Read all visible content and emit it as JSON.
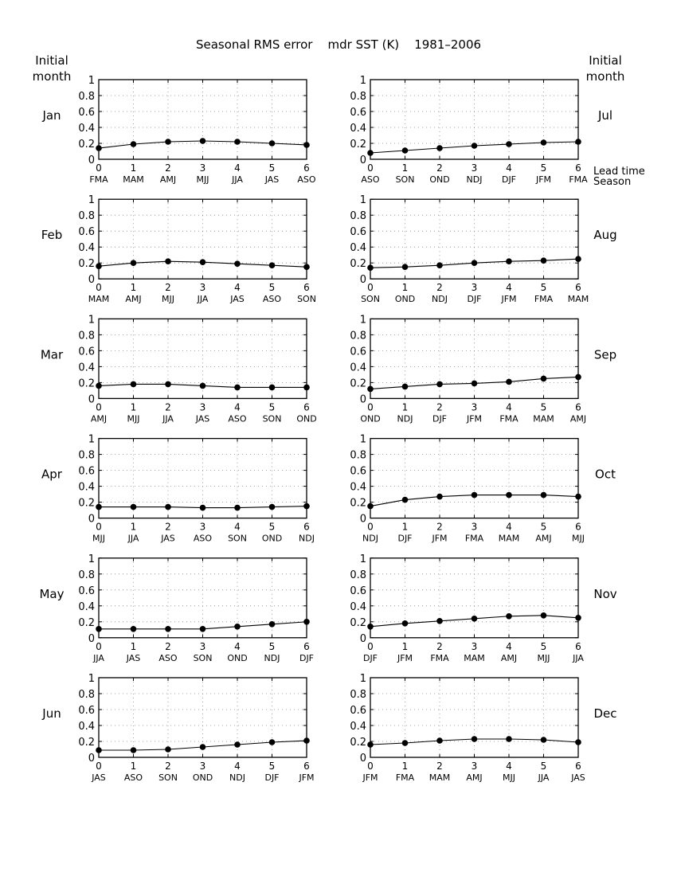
{
  "figure": {
    "title": "Seasonal RMS error    mdr SST (K)    1981–2006",
    "left_header": [
      "Initial",
      "month"
    ],
    "right_header": [
      "Initial",
      "month"
    ],
    "lead_time_label": "Lead time",
    "season_label": "Season"
  },
  "chart_data": {
    "type": "line",
    "grid": "dotted",
    "ylim": [
      0,
      1
    ],
    "yticks": [
      "0",
      "0.2",
      "0.4",
      "0.6",
      "0.8",
      "1"
    ],
    "x": [
      0,
      1,
      2,
      3,
      4,
      5,
      6
    ],
    "panels": [
      {
        "month": "Jan",
        "seasons": [
          "FMA",
          "MAM",
          "AMJ",
          "MJJ",
          "JJA",
          "JAS",
          "ASO"
        ],
        "values": [
          0.14,
          0.19,
          0.22,
          0.23,
          0.22,
          0.2,
          0.18
        ]
      },
      {
        "month": "Jul",
        "seasons": [
          "ASO",
          "SON",
          "OND",
          "NDJ",
          "DJF",
          "JFM",
          "FMA"
        ],
        "values": [
          0.08,
          0.11,
          0.14,
          0.17,
          0.19,
          0.21,
          0.22
        ]
      },
      {
        "month": "Feb",
        "seasons": [
          "MAM",
          "AMJ",
          "MJJ",
          "JJA",
          "JAS",
          "ASO",
          "SON"
        ],
        "values": [
          0.16,
          0.2,
          0.22,
          0.21,
          0.19,
          0.17,
          0.15
        ]
      },
      {
        "month": "Aug",
        "seasons": [
          "SON",
          "OND",
          "NDJ",
          "DJF",
          "JFM",
          "FMA",
          "MAM"
        ],
        "values": [
          0.14,
          0.15,
          0.17,
          0.2,
          0.22,
          0.23,
          0.25
        ]
      },
      {
        "month": "Mar",
        "seasons": [
          "AMJ",
          "MJJ",
          "JJA",
          "JAS",
          "ASO",
          "SON",
          "OND"
        ],
        "values": [
          0.16,
          0.18,
          0.18,
          0.16,
          0.14,
          0.14,
          0.14
        ]
      },
      {
        "month": "Sep",
        "seasons": [
          "OND",
          "NDJ",
          "DJF",
          "JFM",
          "FMA",
          "MAM",
          "AMJ"
        ],
        "values": [
          0.12,
          0.15,
          0.18,
          0.19,
          0.21,
          0.25,
          0.27
        ]
      },
      {
        "month": "Apr",
        "seasons": [
          "MJJ",
          "JJA",
          "JAS",
          "ASO",
          "SON",
          "OND",
          "NDJ"
        ],
        "values": [
          0.14,
          0.14,
          0.14,
          0.13,
          0.13,
          0.14,
          0.15
        ]
      },
      {
        "month": "Oct",
        "seasons": [
          "NDJ",
          "DJF",
          "JFM",
          "FMA",
          "MAM",
          "AMJ",
          "MJJ"
        ],
        "values": [
          0.15,
          0.23,
          0.27,
          0.29,
          0.29,
          0.29,
          0.27
        ]
      },
      {
        "month": "May",
        "seasons": [
          "JJA",
          "JAS",
          "ASO",
          "SON",
          "OND",
          "NDJ",
          "DJF"
        ],
        "values": [
          0.11,
          0.11,
          0.11,
          0.11,
          0.14,
          0.17,
          0.2
        ]
      },
      {
        "month": "Nov",
        "seasons": [
          "DJF",
          "JFM",
          "FMA",
          "MAM",
          "AMJ",
          "MJJ",
          "JJA"
        ],
        "values": [
          0.14,
          0.18,
          0.21,
          0.24,
          0.27,
          0.28,
          0.25
        ]
      },
      {
        "month": "Jun",
        "seasons": [
          "JAS",
          "ASO",
          "SON",
          "OND",
          "NDJ",
          "DJF",
          "JFM"
        ],
        "values": [
          0.09,
          0.09,
          0.1,
          0.13,
          0.16,
          0.19,
          0.21
        ]
      },
      {
        "month": "Dec",
        "seasons": [
          "JFM",
          "FMA",
          "MAM",
          "AMJ",
          "MJJ",
          "JJA",
          "JAS"
        ],
        "values": [
          0.16,
          0.18,
          0.21,
          0.23,
          0.23,
          0.22,
          0.19
        ]
      }
    ]
  }
}
